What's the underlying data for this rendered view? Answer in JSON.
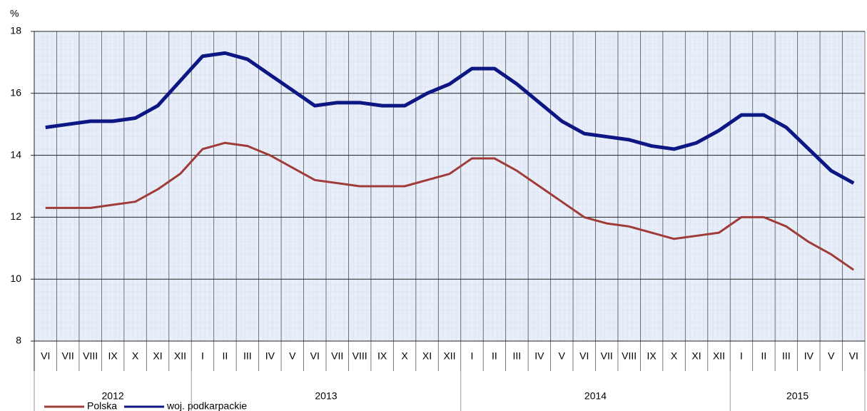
{
  "chart_data": {
    "type": "line",
    "y_label": "%",
    "categories": [
      "VI",
      "VII",
      "VIII",
      "IX",
      "X",
      "XI",
      "XII",
      "I",
      "II",
      "III",
      "IV",
      "V",
      "VI",
      "VII",
      "VIII",
      "IX",
      "X",
      "XI",
      "XII",
      "I",
      "II",
      "III",
      "IV",
      "V",
      "VI",
      "VII",
      "VIII",
      "IX",
      "X",
      "XI",
      "XII",
      "I",
      "II",
      "III",
      "IV",
      "V",
      "VI"
    ],
    "years": [
      "2012",
      "2013",
      "2014",
      "2015"
    ],
    "series": [
      {
        "name": "Polska",
        "color": "#a03c38",
        "values": [
          12.3,
          12.3,
          12.3,
          12.4,
          12.5,
          12.9,
          13.4,
          14.2,
          14.4,
          14.3,
          14.0,
          13.6,
          13.2,
          13.1,
          13.0,
          13.0,
          13.0,
          13.2,
          13.4,
          13.9,
          13.9,
          13.5,
          13.0,
          12.5,
          12.0,
          11.8,
          11.7,
          11.5,
          11.3,
          11.4,
          11.5,
          12.0,
          12.0,
          11.7,
          11.2,
          10.8,
          10.3
        ]
      },
      {
        "name": "woj. podkarpackie",
        "color": "#0c1784",
        "values": [
          14.9,
          15.0,
          15.1,
          15.1,
          15.2,
          15.6,
          16.4,
          17.2,
          17.3,
          17.1,
          16.6,
          16.1,
          15.6,
          15.7,
          15.7,
          15.6,
          15.6,
          16.0,
          16.3,
          16.8,
          16.8,
          16.3,
          15.7,
          15.1,
          14.7,
          14.6,
          14.5,
          14.3,
          14.2,
          14.4,
          14.8,
          15.3,
          15.3,
          14.9,
          14.2,
          13.5,
          13.1
        ]
      }
    ],
    "ylim": [
      8,
      18
    ],
    "yticks": [
      8,
      10,
      12,
      14,
      16,
      18
    ],
    "grid": true
  }
}
